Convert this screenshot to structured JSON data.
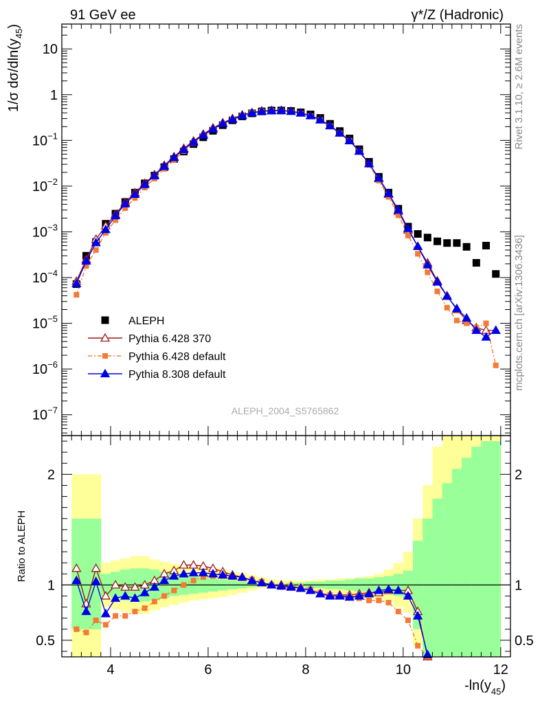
{
  "header": {
    "left": "91 GeV ee",
    "right": "γ*/Z (Hadronic)"
  },
  "side": {
    "rivet": "Rivet 3.1.10, ≥ 2.6M events",
    "mcplots": "mcplots.cern.ch [arXiv:1306.3436]"
  },
  "colors": {
    "aleph": "#000000",
    "p6_370": "#9a1a1a",
    "p6_default": "#f47a36",
    "p8": "#0000e6",
    "band_outer": "#ffff99",
    "band_inner": "#99ff99"
  },
  "chart_data": [
    {
      "type": "scatter",
      "panel": "main",
      "analysis_label": "ALEPH_2004_S5765862",
      "ylabel_parts": [
        "1/σ  dσ/dln(y",
        "45",
        ")"
      ],
      "yscale": "log",
      "xlim": [
        3.0,
        12.2
      ],
      "ylim": [
        3.5e-08,
        35
      ],
      "y_tick_labels": [
        {
          "value": 10,
          "text": "10"
        },
        {
          "value": 1,
          "text": "1"
        },
        {
          "value": 0.1,
          "base": "10",
          "exp": "−1"
        },
        {
          "value": 0.01,
          "base": "10",
          "exp": "−2"
        },
        {
          "value": 0.001,
          "base": "10",
          "exp": "−3"
        },
        {
          "value": 0.0001,
          "base": "10",
          "exp": "−4"
        },
        {
          "value": 1e-05,
          "base": "10",
          "exp": "−5"
        },
        {
          "value": 1e-06,
          "base": "10",
          "exp": "−6"
        },
        {
          "value": 1e-07,
          "base": "10",
          "exp": "−7"
        }
      ],
      "legend": [
        {
          "name": "ALEPH",
          "marker": "square"
        },
        {
          "name": "Pythia 6.428 370",
          "marker": "triangle-open"
        },
        {
          "name": "Pythia 6.428 default",
          "marker": "square-small"
        },
        {
          "name": "Pythia 8.308 default",
          "marker": "triangle"
        }
      ],
      "x": [
        3.3,
        3.5,
        3.7,
        3.9,
        4.1,
        4.3,
        4.5,
        4.7,
        4.9,
        5.1,
        5.3,
        5.5,
        5.7,
        5.9,
        6.1,
        6.3,
        6.5,
        6.7,
        6.9,
        7.1,
        7.3,
        7.5,
        7.7,
        7.9,
        8.1,
        8.3,
        8.5,
        8.7,
        8.9,
        9.1,
        9.3,
        9.5,
        9.7,
        9.9,
        10.1,
        10.3,
        10.5,
        10.7,
        10.9,
        11.1,
        11.3,
        11.5,
        11.7,
        11.9
      ],
      "series": [
        {
          "name": "ALEPH",
          "values": [
            7.2e-05,
            0.0003,
            0.0006,
            0.0015,
            0.0025,
            0.0045,
            0.0072,
            0.0115,
            0.017,
            0.026,
            0.039,
            0.057,
            0.083,
            0.117,
            0.162,
            0.215,
            0.275,
            0.335,
            0.39,
            0.43,
            0.45,
            0.45,
            0.44,
            0.41,
            0.37,
            0.31,
            0.23,
            0.16,
            0.11,
            0.064,
            0.034,
            0.016,
            0.0072,
            0.0032,
            0.0013,
            0.0009,
            0.00075,
            0.00062,
            0.00057,
            0.00057,
            0.00047,
            0.00021,
            0.0005,
            0.00012
          ]
        },
        {
          "name": "Pythia 6.428 370",
          "values": [
            8.3e-05,
            0.00025,
            0.00069,
            0.00135,
            0.0024,
            0.0044,
            0.0072,
            0.0115,
            0.0178,
            0.0285,
            0.044,
            0.067,
            0.097,
            0.137,
            0.187,
            0.243,
            0.3,
            0.36,
            0.405,
            0.44,
            0.452,
            0.452,
            0.435,
            0.4,
            0.35,
            0.285,
            0.21,
            0.146,
            0.1,
            0.059,
            0.031,
            0.0145,
            0.0066,
            0.0028,
            0.0011,
            0.00048,
            0.00021,
            8.5e-05,
            4e-05,
            2e-05,
            1.15e-05,
            8e-06,
            7e-06,
            7e-06
          ]
        },
        {
          "name": "Pythia 6.428 default",
          "values": [
            4.2e-05,
            0.00018,
            0.0004,
            0.00095,
            0.0018,
            0.0033,
            0.0055,
            0.0093,
            0.0146,
            0.0238,
            0.037,
            0.058,
            0.087,
            0.127,
            0.177,
            0.232,
            0.29,
            0.35,
            0.4,
            0.43,
            0.44,
            0.438,
            0.422,
            0.388,
            0.34,
            0.278,
            0.204,
            0.142,
            0.098,
            0.056,
            0.029,
            0.0132,
            0.0058,
            0.0023,
            0.00083,
            0.00033,
            0.00013,
            5e-05,
            2.2e-05,
            1.15e-05,
            1e-05,
            8e-06,
            1e-05,
            1.2e-06
          ]
        },
        {
          "name": "Pythia 8.308 default",
          "values": [
            7.4e-05,
            0.00023,
            0.00058,
            0.00112,
            0.00225,
            0.0041,
            0.0066,
            0.0108,
            0.0168,
            0.027,
            0.042,
            0.063,
            0.092,
            0.13,
            0.178,
            0.235,
            0.29,
            0.35,
            0.4,
            0.43,
            0.445,
            0.45,
            0.43,
            0.395,
            0.345,
            0.28,
            0.208,
            0.144,
            0.098,
            0.058,
            0.031,
            0.015,
            0.0069,
            0.003,
            0.00118,
            0.00048,
            0.00019,
            8e-05,
            3.9e-05,
            2.1e-05,
            1.3e-05,
            7e-06,
            5e-06,
            7e-06
          ]
        }
      ]
    },
    {
      "type": "scatter",
      "panel": "ratio",
      "ylabel": "Ratio to ALEPH",
      "xlabel_parts": [
        "-ln(y",
        "45",
        ")"
      ],
      "xlim": [
        3.0,
        12.2
      ],
      "ylim": [
        0.35,
        2.35
      ],
      "x_ticks": [
        4,
        6,
        8,
        10,
        12
      ],
      "y_ticks": [
        0.5,
        1,
        2
      ],
      "x": [
        3.3,
        3.5,
        3.7,
        3.9,
        4.1,
        4.3,
        4.5,
        4.7,
        4.9,
        5.1,
        5.3,
        5.5,
        5.7,
        5.9,
        6.1,
        6.3,
        6.5,
        6.7,
        6.9,
        7.1,
        7.3,
        7.5,
        7.7,
        7.9,
        8.1,
        8.3,
        8.5,
        8.7,
        8.9,
        9.1,
        9.3,
        9.5,
        9.7,
        9.9,
        10.1,
        10.3,
        10.5
      ],
      "bands": {
        "edges": [
          3.2,
          3.8,
          4.0,
          4.2,
          4.4,
          4.6,
          4.8,
          5.0,
          5.2,
          5.4,
          5.6,
          5.8,
          6.0,
          6.2,
          6.4,
          6.6,
          6.8,
          7.0,
          7.2,
          7.4,
          7.6,
          7.8,
          8.0,
          8.2,
          8.4,
          8.6,
          8.8,
          9.0,
          9.2,
          9.4,
          9.6,
          9.8,
          10.0,
          10.2,
          10.4,
          10.6,
          10.8,
          11.0,
          11.2,
          11.4,
          11.6,
          11.8,
          12.0
        ],
        "outer_low": [
          0.35,
          0.8,
          0.78,
          0.76,
          0.74,
          0.74,
          0.77,
          0.8,
          0.82,
          0.84,
          0.86,
          0.87,
          0.88,
          0.89,
          0.91,
          0.93,
          0.95,
          0.97,
          0.98,
          0.98,
          0.97,
          0.96,
          0.95,
          0.94,
          0.93,
          0.92,
          0.9,
          0.89,
          0.88,
          0.87,
          0.85,
          0.8,
          0.75,
          0.45,
          0.35,
          0.35,
          0.35,
          0.35,
          0.35,
          0.35,
          0.35,
          0.35
        ],
        "outer_high": [
          2.0,
          1.2,
          1.22,
          1.24,
          1.26,
          1.26,
          1.23,
          1.21,
          1.19,
          1.18,
          1.17,
          1.16,
          1.15,
          1.14,
          1.12,
          1.11,
          1.09,
          1.07,
          1.05,
          1.04,
          1.04,
          1.04,
          1.04,
          1.05,
          1.05,
          1.06,
          1.06,
          1.07,
          1.08,
          1.1,
          1.14,
          1.2,
          1.3,
          1.6,
          1.9,
          2.25,
          2.35,
          2.35,
          2.35,
          2.35,
          2.35,
          2.35
        ],
        "inner_low": [
          0.6,
          0.9,
          0.88,
          0.86,
          0.85,
          0.85,
          0.86,
          0.88,
          0.9,
          0.91,
          0.92,
          0.93,
          0.94,
          0.95,
          0.96,
          0.97,
          0.98,
          0.99,
          0.99,
          0.99,
          0.98,
          0.98,
          0.97,
          0.97,
          0.96,
          0.96,
          0.95,
          0.94,
          0.94,
          0.93,
          0.92,
          0.9,
          0.87,
          0.6,
          0.35,
          0.35,
          0.35,
          0.35,
          0.35,
          0.35,
          0.35,
          0.35
        ],
        "inner_high": [
          1.6,
          1.1,
          1.12,
          1.14,
          1.15,
          1.15,
          1.14,
          1.12,
          1.1,
          1.09,
          1.08,
          1.07,
          1.06,
          1.05,
          1.04,
          1.03,
          1.02,
          1.01,
          1.01,
          1.01,
          1.02,
          1.02,
          1.03,
          1.03,
          1.04,
          1.04,
          1.05,
          1.06,
          1.06,
          1.07,
          1.08,
          1.1,
          1.13,
          1.4,
          1.6,
          1.78,
          1.92,
          2.05,
          2.15,
          2.25,
          2.3,
          2.3
        ]
      },
      "series": [
        {
          "name": "Pythia 6.428 370",
          "values": [
            1.15,
            0.83,
            1.15,
            0.9,
            1.0,
            0.98,
            0.98,
            1.0,
            1.04,
            1.1,
            1.13,
            1.18,
            1.18,
            1.17,
            1.15,
            1.12,
            1.09,
            1.07,
            1.04,
            1.02,
            1.0,
            1.0,
            0.99,
            0.97,
            0.95,
            0.92,
            0.91,
            0.91,
            0.91,
            0.92,
            0.93,
            0.93,
            0.95,
            0.95,
            0.95,
            0.76,
            0.35
          ]
        },
        {
          "name": "Pythia 6.428 default",
          "values": [
            0.6,
            0.57,
            0.68,
            0.64,
            0.72,
            0.72,
            0.76,
            0.79,
            0.85,
            0.9,
            0.95,
            1.0,
            1.04,
            1.07,
            1.08,
            1.08,
            1.07,
            1.06,
            1.05,
            1.03,
            1.0,
            0.98,
            0.98,
            0.98,
            0.96,
            0.93,
            0.91,
            0.9,
            0.9,
            0.88,
            0.86,
            0.86,
            0.84,
            0.76,
            0.68,
            0.45,
            0.35
          ]
        },
        {
          "name": "Pythia 8.308 default",
          "values": [
            1.04,
            0.76,
            1.03,
            0.74,
            0.88,
            0.9,
            0.88,
            0.93,
            0.98,
            1.04,
            1.08,
            1.1,
            1.11,
            1.11,
            1.1,
            1.09,
            1.08,
            1.07,
            1.04,
            1.02,
            1.0,
            0.99,
            0.98,
            0.97,
            0.95,
            0.92,
            0.9,
            0.9,
            0.89,
            0.9,
            0.92,
            0.95,
            0.96,
            0.95,
            0.9,
            0.72,
            0.37
          ]
        }
      ]
    }
  ]
}
